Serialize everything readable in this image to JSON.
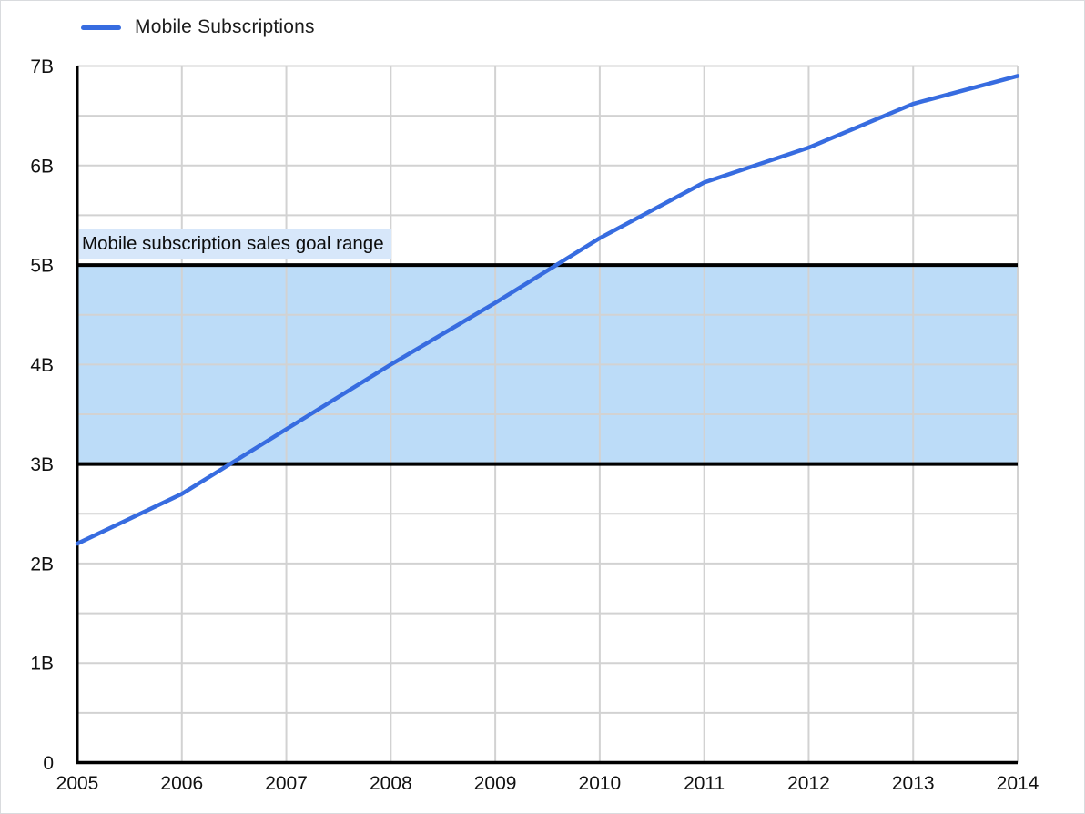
{
  "legend": {
    "label": "Mobile Subscriptions"
  },
  "annotation": {
    "label": "Mobile subscription sales goal range"
  },
  "chart_data": {
    "type": "line",
    "title": "",
    "xlabel": "",
    "ylabel": "",
    "x": [
      2005,
      2006,
      2007,
      2008,
      2009,
      2010,
      2011,
      2012,
      2013,
      2014
    ],
    "x_tick_labels": [
      "2005",
      "2006",
      "2007",
      "2008",
      "2009",
      "2010",
      "2011",
      "2012",
      "2013",
      "2014"
    ],
    "series": [
      {
        "name": "Mobile Subscriptions",
        "values": [
          2.2,
          2.7,
          3.35,
          4.0,
          4.62,
          5.27,
          5.83,
          6.18,
          6.62,
          6.9
        ],
        "unit": "billion subscriptions",
        "color": "#376CE0"
      }
    ],
    "band": {
      "from": 3,
      "to": 5,
      "label": "Mobile subscription sales goal range",
      "fill": "#BCDCF8",
      "border_color": "#000000",
      "label_bg": "#D7E7FA"
    },
    "ylim": [
      0,
      7
    ],
    "xlim": [
      2005,
      2014
    ],
    "y_tick_values": [
      0,
      1,
      2,
      3,
      4,
      5,
      6,
      7
    ],
    "y_tick_labels": [
      "0",
      "1B",
      "2B",
      "3B",
      "4B",
      "5B",
      "6B",
      "7B"
    ],
    "y_minor_step": 0.5,
    "grid": true,
    "gridline_color": "#D2D2D2",
    "axis_color": "#000000",
    "tick_label_color": "#111111",
    "legend_position": "top-left"
  }
}
